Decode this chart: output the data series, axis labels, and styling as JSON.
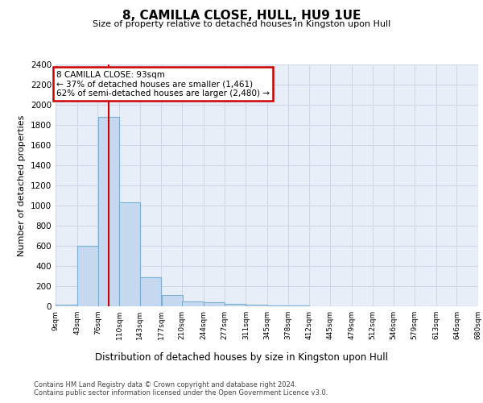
{
  "title": "8, CAMILLA CLOSE, HULL, HU9 1UE",
  "subtitle": "Size of property relative to detached houses in Kingston upon Hull",
  "xlabel": "Distribution of detached houses by size in Kingston upon Hull",
  "ylabel": "Number of detached properties",
  "footer_line1": "Contains HM Land Registry data © Crown copyright and database right 2024.",
  "footer_line2": "Contains public sector information licensed under the Open Government Licence v3.0.",
  "bin_edges": [
    9,
    43,
    76,
    110,
    143,
    177,
    210,
    244,
    277,
    311,
    345,
    378,
    412,
    445,
    479,
    512,
    546,
    579,
    613,
    646,
    680
  ],
  "bar_values": [
    20,
    600,
    1880,
    1030,
    285,
    115,
    50,
    40,
    25,
    15,
    5,
    5,
    0,
    0,
    0,
    0,
    0,
    0,
    0,
    0
  ],
  "bar_color": "#c5d8f0",
  "bar_edgecolor": "#7aafd4",
  "property_size": 93,
  "vline_color": "#cc0000",
  "annotation_title": "8 CAMILLA CLOSE: 93sqm",
  "annotation_line1": "← 37% of detached houses are smaller (1,461)",
  "annotation_line2": "62% of semi-detached houses are larger (2,480) →",
  "annotation_box_edgecolor": "#cc0000",
  "ylim": [
    0,
    2400
  ],
  "background_color": "#e8eef8",
  "grid_color": "#d0d8e8",
  "tick_labels": [
    "9sqm",
    "43sqm",
    "76sqm",
    "110sqm",
    "143sqm",
    "177sqm",
    "210sqm",
    "244sqm",
    "277sqm",
    "311sqm",
    "345sqm",
    "378sqm",
    "412sqm",
    "445sqm",
    "479sqm",
    "512sqm",
    "546sqm",
    "579sqm",
    "613sqm",
    "646sqm",
    "680sqm"
  ]
}
